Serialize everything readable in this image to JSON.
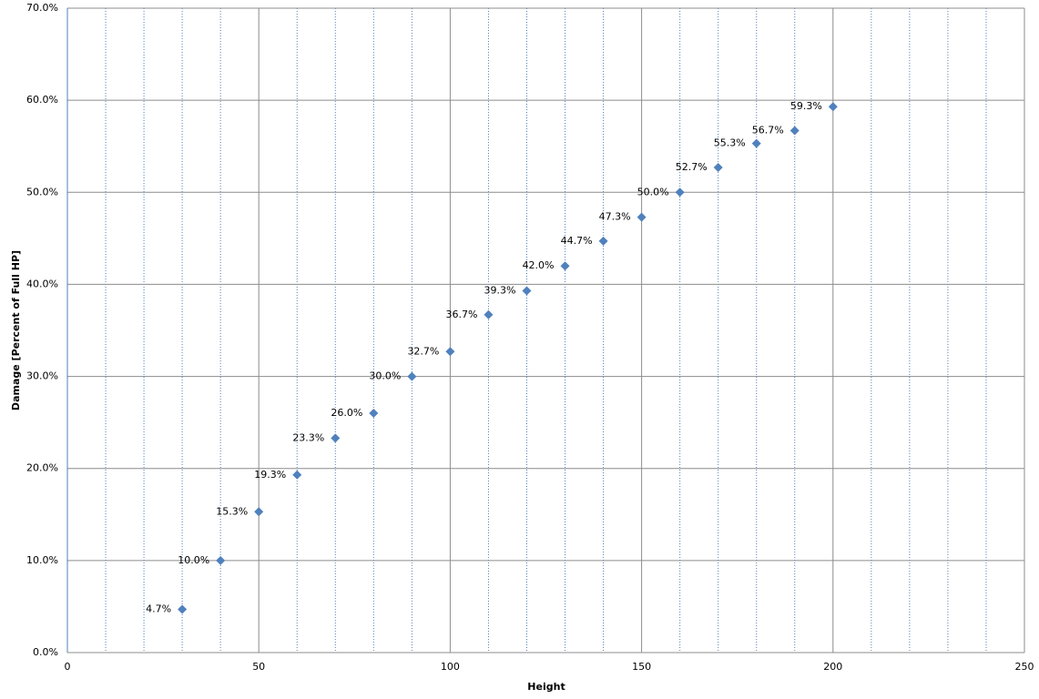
{
  "chart_data": {
    "type": "scatter",
    "x_label": "Height",
    "y_label": "Damage [Percent of Full HP]",
    "x": [
      30,
      40,
      50,
      60,
      70,
      80,
      90,
      100,
      110,
      120,
      130,
      140,
      150,
      160,
      170,
      180,
      190,
      200
    ],
    "values": [
      4.7,
      10.0,
      15.3,
      19.3,
      23.3,
      26.0,
      30.0,
      32.7,
      36.7,
      39.3,
      42.0,
      44.7,
      47.3,
      50.0,
      52.7,
      55.3,
      56.7,
      59.3
    ],
    "value_labels": [
      "4.7%",
      "10.0%",
      "15.3%",
      "19.3%",
      "23.3%",
      "26.0%",
      "30.0%",
      "32.7%",
      "36.7%",
      "39.3%",
      "42.0%",
      "44.7%",
      "47.3%",
      "50.0%",
      "52.7%",
      "55.3%",
      "56.7%",
      "59.3%"
    ],
    "color": "#4f81bd",
    "xlim": [
      0,
      250
    ],
    "xticks": [
      0,
      50,
      100,
      150,
      200,
      250
    ],
    "xminorticks": [
      10,
      20,
      30,
      40,
      60,
      70,
      80,
      90,
      110,
      120,
      130,
      140,
      160,
      170,
      180,
      190,
      210,
      220,
      230,
      240
    ],
    "ylim": [
      0,
      70
    ],
    "yticks": [
      {
        "value": 0,
        "label": "0.0%"
      },
      {
        "value": 10,
        "label": "10.0%"
      },
      {
        "value": 20,
        "label": "20.0%"
      },
      {
        "value": 30,
        "label": "30.0%"
      },
      {
        "value": 40,
        "label": "40.0%"
      },
      {
        "value": 50,
        "label": "50.0%"
      },
      {
        "value": 60,
        "label": "60.0%"
      },
      {
        "value": 70,
        "label": "70.0%"
      }
    ],
    "grid": true
  }
}
